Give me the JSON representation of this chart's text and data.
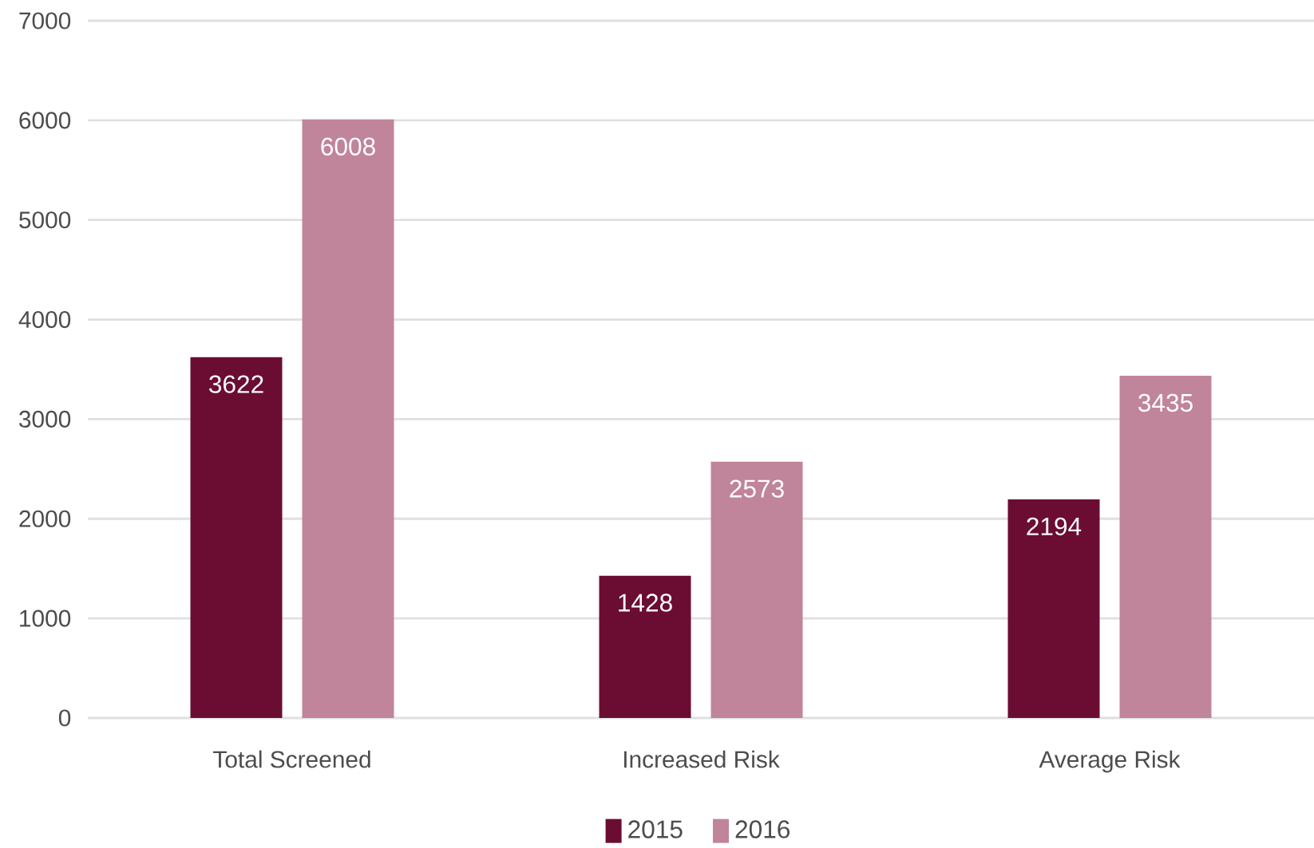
{
  "chart_data": {
    "type": "bar",
    "categories": [
      "Total Screened",
      "Increased Risk",
      "Average Risk"
    ],
    "series": [
      {
        "name": "2015",
        "color": "#6b0d33",
        "values": [
          3622,
          1428,
          2194
        ]
      },
      {
        "name": "2016",
        "color": "#c0849b",
        "values": [
          6008,
          2573,
          3435
        ]
      }
    ],
    "ylim": [
      0,
      7000
    ],
    "yticks": [
      0,
      1000,
      2000,
      3000,
      4000,
      5000,
      6000,
      7000
    ],
    "grid": "y",
    "legend": "bottom",
    "data_labels": true
  }
}
